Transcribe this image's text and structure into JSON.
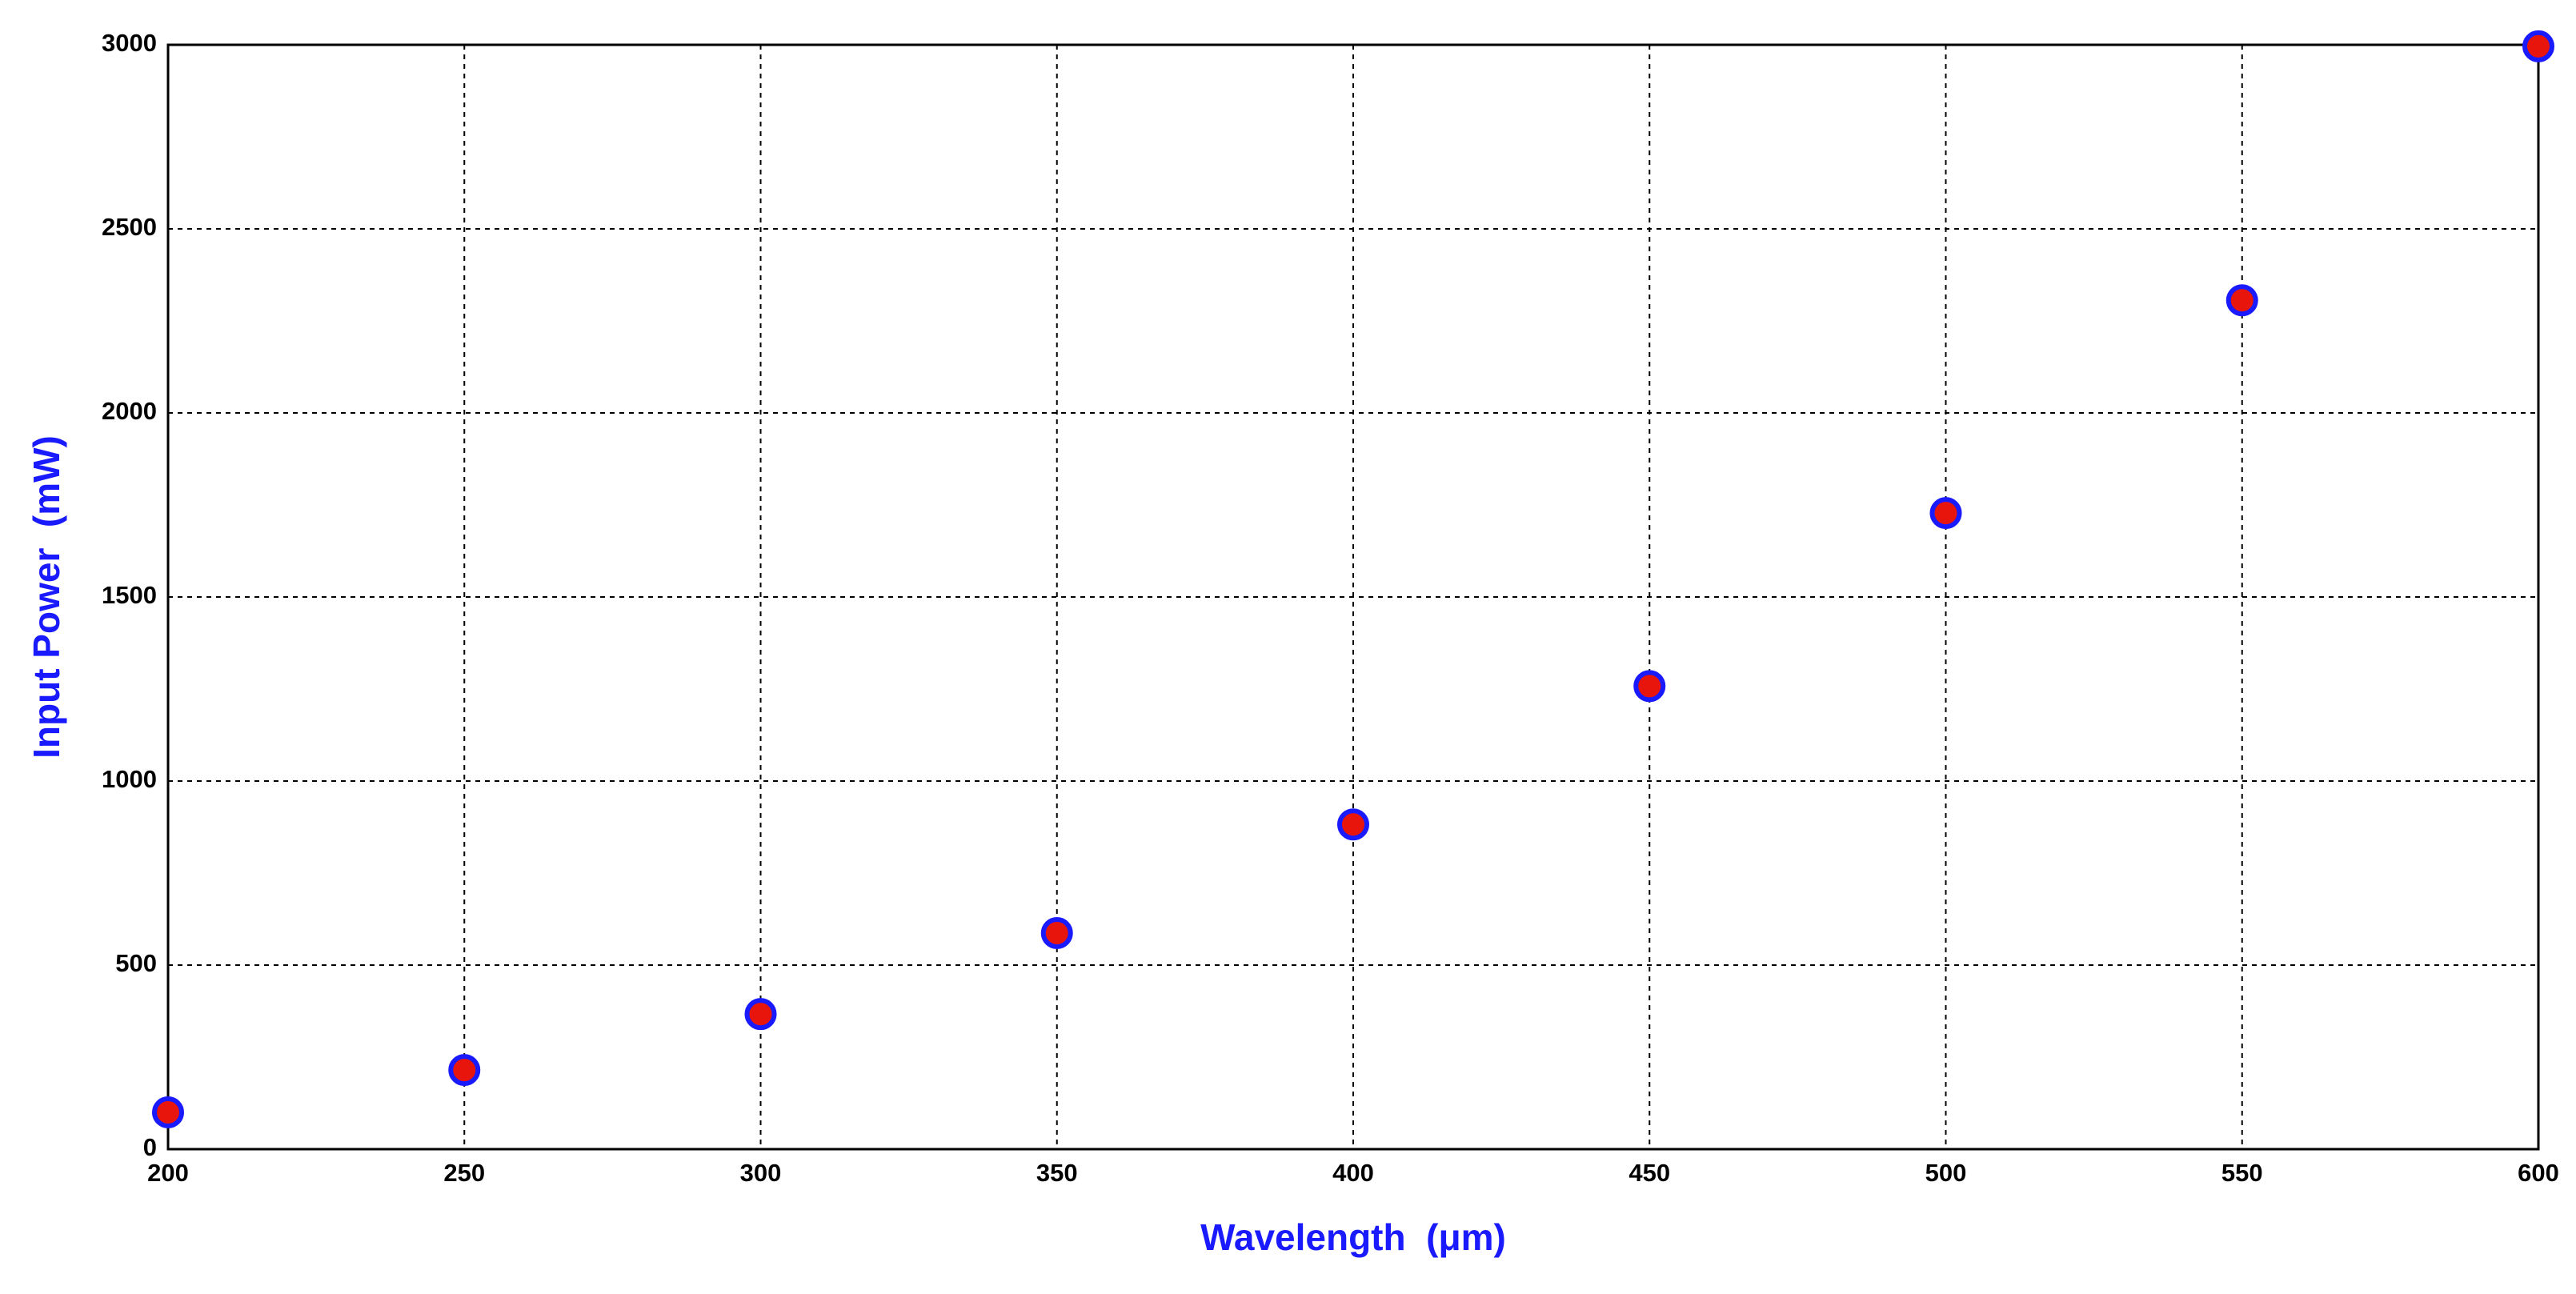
{
  "chart_data": {
    "type": "scatter",
    "x_label": "Wavelength  (μm)",
    "y_label": "Input Power  (mW)",
    "x": [
      200,
      250,
      300,
      350,
      400,
      450,
      500,
      550,
      600
    ],
    "series": [
      {
        "color": "#e8150d",
        "edge_color": "#1a1aff",
        "values": [
          100,
          215,
          367,
          587,
          882,
          1258,
          1728,
          2306,
          2996
        ]
      }
    ],
    "xlim": [
      200,
      600
    ],
    "xticks": [
      200,
      250,
      300,
      350,
      400,
      450,
      500,
      550,
      600
    ],
    "ylim": [
      0,
      3000
    ],
    "yticks": [
      0,
      500,
      1000,
      1500,
      2000,
      2500,
      3000
    ],
    "grid": true
  }
}
